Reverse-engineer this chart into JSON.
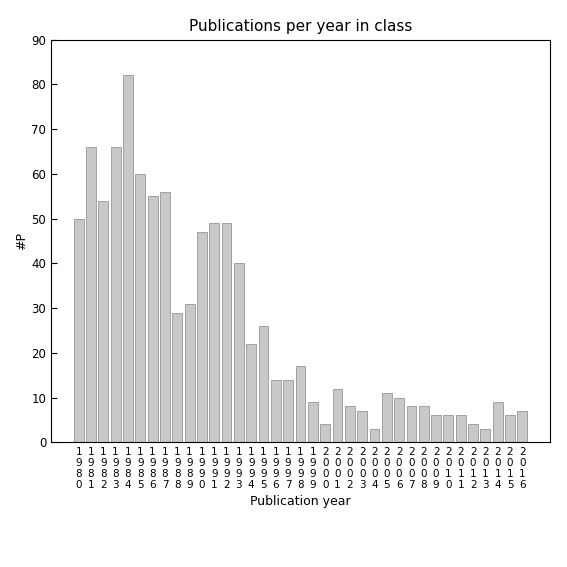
{
  "title": "Publications per year in class",
  "xlabel": "Publication year",
  "ylabel": "#P",
  "ylim": [
    0,
    90
  ],
  "yticks": [
    0,
    10,
    20,
    30,
    40,
    50,
    60,
    70,
    80,
    90
  ],
  "categories": [
    "1980",
    "1981",
    "1982",
    "1983",
    "1984",
    "1985",
    "1986",
    "1987",
    "1988",
    "1989",
    "1990",
    "1991",
    "1992",
    "1993",
    "1994",
    "1995",
    "1996",
    "1997",
    "1998",
    "1999",
    "2000",
    "2001",
    "2002",
    "2003",
    "2004",
    "2005",
    "2006",
    "2007",
    "2008",
    "2009",
    "2010",
    "2011",
    "2012",
    "2013",
    "2014",
    "2015",
    "2016"
  ],
  "values": [
    50,
    66,
    54,
    66,
    82,
    60,
    55,
    56,
    29,
    31,
    47,
    49,
    49,
    40,
    22,
    26,
    14,
    14,
    17,
    9,
    4,
    12,
    8,
    7,
    3,
    11,
    10,
    8,
    8,
    6,
    6,
    6,
    4,
    3,
    9,
    6,
    7
  ],
  "bar_color": "#c8c8c8",
  "bar_edgecolor": "#888888",
  "background_color": "#ffffff",
  "title_fontsize": 11,
  "axis_label_fontsize": 9,
  "ylabel_fontsize": 9,
  "tick_fontsize": 8.5,
  "xtick_fontsize": 7.5
}
